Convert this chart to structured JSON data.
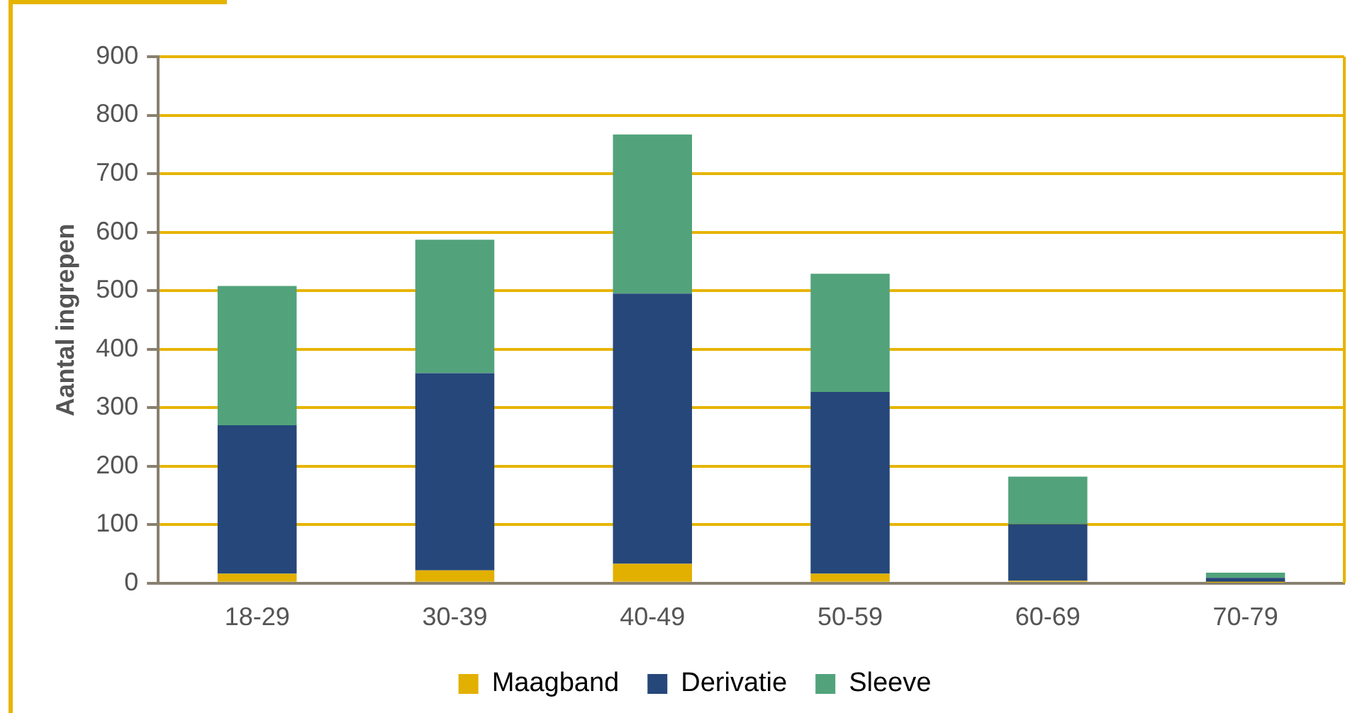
{
  "chart_data": {
    "type": "bar",
    "stacked": true,
    "ylabel": "Aantal ingrepen",
    "categories": [
      "18-29",
      "30-39",
      "40-49",
      "50-59",
      "60-69",
      "70-79"
    ],
    "series": [
      {
        "name": "Maagband",
        "color": "#e2b000",
        "values": [
          16,
          22,
          33,
          16,
          4,
          1
        ]
      },
      {
        "name": "Derivatie",
        "color": "#26477a",
        "values": [
          254,
          337,
          462,
          311,
          97,
          8
        ]
      },
      {
        "name": "Sleeve",
        "color": "#52a37b",
        "values": [
          238,
          228,
          272,
          202,
          81,
          9
        ]
      }
    ],
    "ylim": [
      0,
      900
    ],
    "yticks": [
      0,
      100,
      200,
      300,
      400,
      500,
      600,
      700,
      800,
      900
    ],
    "grid": "y",
    "legend": "bottom"
  }
}
